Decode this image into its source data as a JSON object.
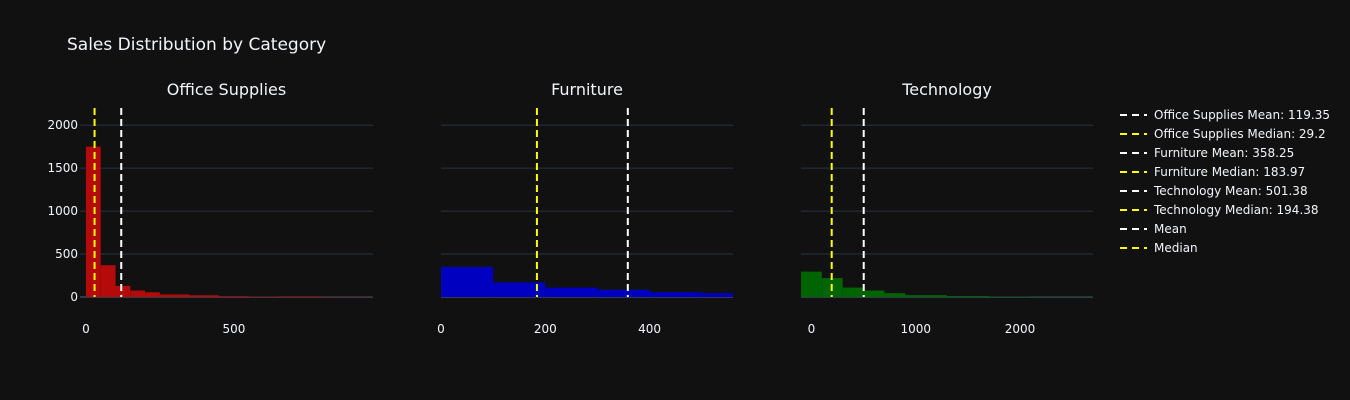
{
  "colors": {
    "background": "#111111",
    "grid": "#283442",
    "text": "#f2f5fa",
    "mean_line": "#ffffff",
    "median_line": "#ffff00"
  },
  "chart_data": {
    "type": "bar",
    "title": "Sales Distribution by Category",
    "grid": true,
    "legend_position": "right",
    "y_axis": {
      "range": [
        0,
        2200
      ],
      "ticks": [
        0,
        500,
        1000,
        1500,
        2000
      ]
    },
    "panels": [
      {
        "name": "Office Supplies",
        "color": "#b50a0a",
        "x_range": [
          -20,
          970
        ],
        "x_ticks": [
          0,
          500
        ],
        "bins": [
          {
            "x0": 0,
            "x1": 50,
            "count": 1750
          },
          {
            "x0": 50,
            "x1": 100,
            "count": 370
          },
          {
            "x0": 100,
            "x1": 150,
            "count": 130
          },
          {
            "x0": 150,
            "x1": 200,
            "count": 75
          },
          {
            "x0": 200,
            "x1": 250,
            "count": 55
          },
          {
            "x0": 250,
            "x1": 350,
            "count": 30
          },
          {
            "x0": 350,
            "x1": 450,
            "count": 20
          },
          {
            "x0": 450,
            "x1": 550,
            "count": 10
          },
          {
            "x0": 550,
            "x1": 650,
            "count": 6
          },
          {
            "x0": 650,
            "x1": 800,
            "count": 8
          },
          {
            "x0": 800,
            "x1": 970,
            "count": 3
          }
        ],
        "mean": 119.35,
        "median": 29.2
      },
      {
        "name": "Furniture",
        "color": "#0000c0",
        "x_range": [
          0,
          560
        ],
        "x_ticks": [
          0,
          200,
          400
        ],
        "bins": [
          {
            "x0": 0,
            "x1": 100,
            "count": 350
          },
          {
            "x0": 100,
            "x1": 200,
            "count": 170
          },
          {
            "x0": 200,
            "x1": 300,
            "count": 110
          },
          {
            "x0": 300,
            "x1": 400,
            "count": 85
          },
          {
            "x0": 400,
            "x1": 500,
            "count": 55
          },
          {
            "x0": 500,
            "x1": 560,
            "count": 45
          }
        ],
        "mean": 358.25,
        "median": 183.97
      },
      {
        "name": "Technology",
        "color": "#006400",
        "x_range": [
          -100,
          2700
        ],
        "x_ticks": [
          0,
          1000,
          2000
        ],
        "bins": [
          {
            "x0": -100,
            "x1": 100,
            "count": 295
          },
          {
            "x0": 100,
            "x1": 300,
            "count": 220
          },
          {
            "x0": 300,
            "x1": 500,
            "count": 110
          },
          {
            "x0": 500,
            "x1": 700,
            "count": 75
          },
          {
            "x0": 700,
            "x1": 900,
            "count": 45
          },
          {
            "x0": 900,
            "x1": 1300,
            "count": 22
          },
          {
            "x0": 1300,
            "x1": 1700,
            "count": 12
          },
          {
            "x0": 1700,
            "x1": 2100,
            "count": 6
          },
          {
            "x0": 2100,
            "x1": 2700,
            "count": 3
          }
        ],
        "mean": 501.38,
        "median": 194.38
      }
    ],
    "legend": [
      {
        "label": "Office Supplies Mean: 119.35",
        "kind": "mean"
      },
      {
        "label": "Office Supplies Median: 29.2",
        "kind": "median"
      },
      {
        "label": "Furniture Mean: 358.25",
        "kind": "mean"
      },
      {
        "label": "Furniture Median: 183.97",
        "kind": "median"
      },
      {
        "label": "Technology Mean: 501.38",
        "kind": "mean"
      },
      {
        "label": "Technology Median: 194.38",
        "kind": "median"
      },
      {
        "label": "Mean",
        "kind": "mean"
      },
      {
        "label": "Median",
        "kind": "median"
      }
    ]
  }
}
